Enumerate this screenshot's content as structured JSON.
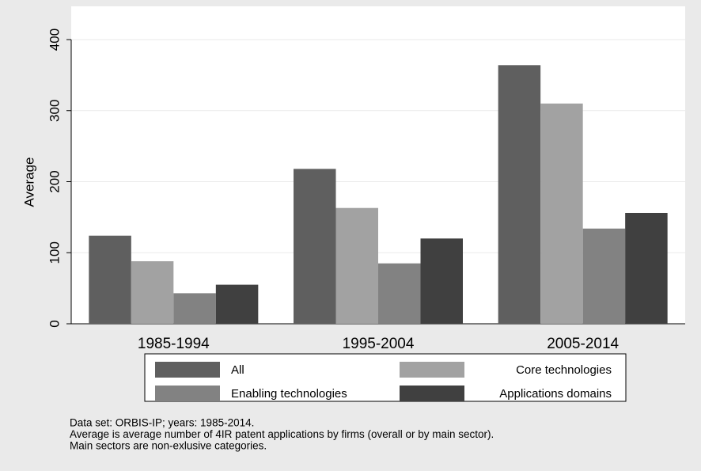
{
  "chart_data": {
    "type": "bar",
    "ylabel": "Average",
    "categories": [
      "1985-1994",
      "1995-2004",
      "2005-2014"
    ],
    "series": [
      {
        "name": "All",
        "color": "#5f5f5f",
        "values": [
          124,
          218,
          364
        ]
      },
      {
        "name": "Core technologies",
        "color": "#a2a2a2",
        "values": [
          88,
          163,
          310
        ]
      },
      {
        "name": "Enabling technologies",
        "color": "#828282",
        "values": [
          43,
          85,
          134
        ]
      },
      {
        "name": "Applications domains",
        "color": "#404040",
        "values": [
          55,
          120,
          156
        ]
      }
    ],
    "ylim": [
      0,
      400
    ],
    "yticks": [
      0,
      100,
      200,
      300,
      400
    ],
    "grid": true,
    "legend": "bottom",
    "notes": [
      "Data set: ORBIS-IP; years: 1985-2014.",
      "Average is average number of 4IR patent applications by firms (overall or by main sector).",
      "Main sectors are non-exlusive categories."
    ]
  }
}
